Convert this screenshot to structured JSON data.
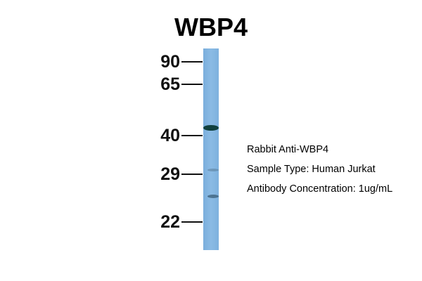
{
  "title": "WBP4",
  "markers": [
    "90",
    "65",
    "40",
    "29",
    "22"
  ],
  "info": {
    "antibody": "Rabbit Anti-WBP4",
    "sample": "Sample Type: Human Jurkat",
    "concentration": "Antibody Concentration: 1ug/mL"
  },
  "colors": {
    "lane": "#86b7e2",
    "band": "#0f3b3a"
  }
}
